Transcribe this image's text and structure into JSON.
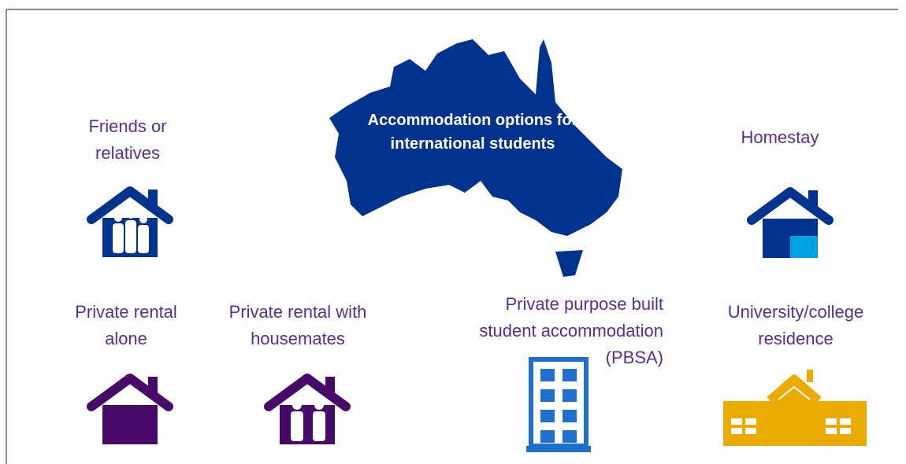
{
  "title": "Accommodation options for international students",
  "options": [
    {
      "label": "Friends or\nrelatives"
    },
    {
      "label": "Homestay"
    },
    {
      "label": "Private rental\nalone"
    },
    {
      "label": "Private rental with\nhousemates"
    },
    {
      "label": "Private purpose built\nstudent accommodation\n(PBSA)"
    },
    {
      "label": "University/college\nresidence"
    }
  ]
}
